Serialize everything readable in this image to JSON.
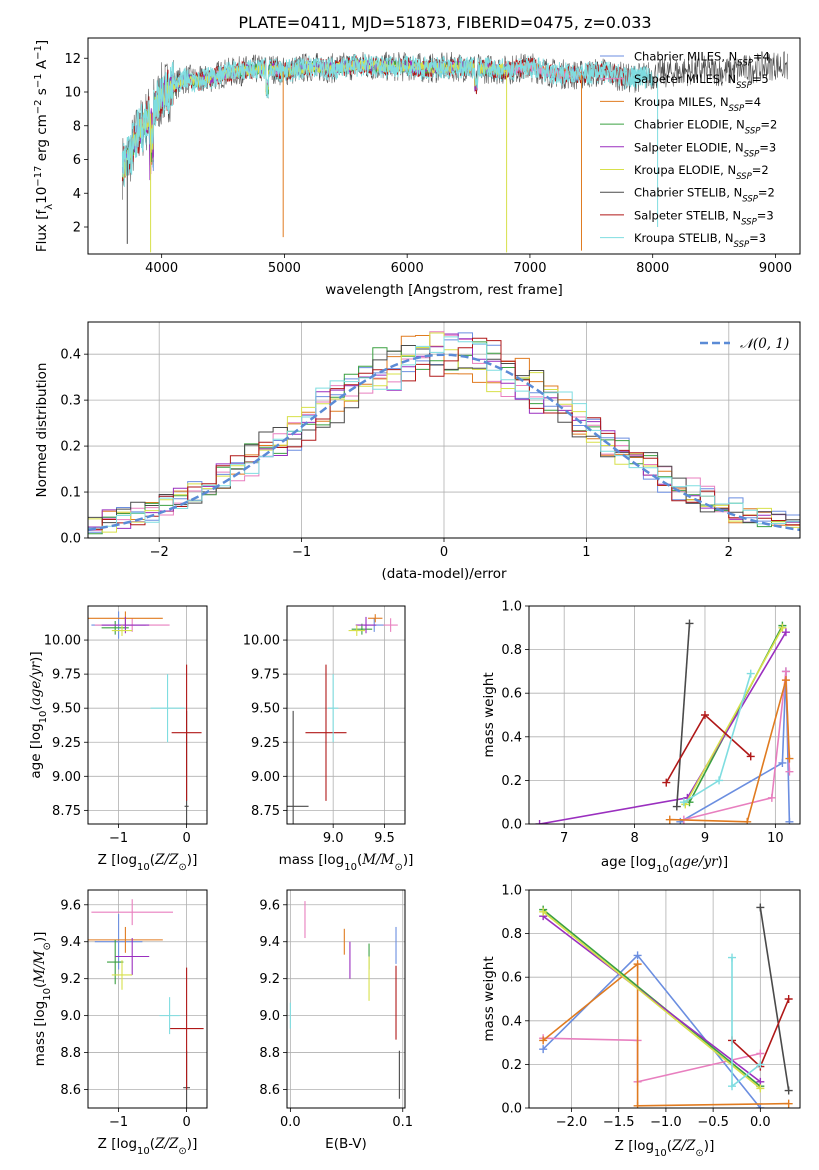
{
  "figure": {
    "title": "PLATE=0411, MJD=51873, FIBERID=0475, z=0.033"
  },
  "colors": {
    "Chabrier MILES": "#6b8ee0",
    "Salpeter MILES": "#e87fbf",
    "Kroupa MILES": "#e07b20",
    "Chabrier ELODIE": "#3aa040",
    "Salpeter ELODIE": "#9a2fbf",
    "Kroupa ELODIE": "#d7e04a",
    "Chabrier STELIB": "#4a4a4a",
    "Salpeter STELIB": "#b01818",
    "Kroupa STELIB": "#7fdde0"
  },
  "chart_data": [
    {
      "id": "spectrum",
      "type": "line",
      "xlabel": "wavelength [Angstrom, rest frame]",
      "ylabel": "Flux [f_λ 10^-17 erg cm^-2 s^-1 A^-1]",
      "xlim": [
        3400,
        9200
      ],
      "ylim": [
        0.4,
        13.2
      ],
      "xticks": [
        4000,
        5000,
        6000,
        7000,
        8000,
        9000
      ],
      "yticks": [
        2,
        4,
        6,
        8,
        10,
        12
      ],
      "grid": false,
      "legend_position": "top-right",
      "legend": [
        {
          "name": "Chabrier MILES",
          "label": "Chabrier MILES, N_SSP=4"
        },
        {
          "name": "Salpeter MILES",
          "label": "Salpeter MILES, N_SSP=5"
        },
        {
          "name": "Kroupa MILES",
          "label": "Kroupa MILES, N_SSP=4"
        },
        {
          "name": "Chabrier ELODIE",
          "label": "Chabrier ELODIE, N_SSP=2"
        },
        {
          "name": "Salpeter ELODIE",
          "label": "Salpeter ELODIE, N_SSP=3"
        },
        {
          "name": "Kroupa ELODIE",
          "label": "Kroupa ELODIE, N_SSP=2"
        },
        {
          "name": "Chabrier STELIB",
          "label": "Chabrier STELIB, N_SSP=2"
        },
        {
          "name": "Salpeter STELIB",
          "label": "Salpeter STELIB, N_SSP=3"
        },
        {
          "name": "Kroupa STELIB",
          "label": "Kroupa STELIB, N_SSP=3"
        }
      ],
      "data_series": {
        "x": [
          3700,
          3800,
          3900,
          4000,
          4100,
          4200,
          4300,
          4500,
          4700,
          4900,
          5000,
          5200,
          5400,
          5600,
          5800,
          6000,
          6200,
          6400,
          6600,
          6800,
          7000,
          7200,
          7400,
          7600,
          7800,
          8000,
          8200,
          8400,
          8600,
          8800,
          9000,
          9100
        ],
        "y": [
          5.6,
          7.4,
          8.6,
          9.8,
          10.4,
          10.8,
          10.6,
          11.1,
          11.3,
          11.4,
          11.2,
          11.5,
          11.4,
          11.6,
          11.5,
          11.5,
          11.4,
          11.5,
          11.4,
          11.3,
          11.5,
          11.1,
          11.0,
          11.2,
          10.8,
          11.0,
          11.2,
          11.3,
          11.2,
          11.4,
          11.6,
          11.5
        ]
      }
    },
    {
      "id": "residuals",
      "type": "line",
      "xlabel": "(data-model)/error",
      "ylabel": "Normed distribution",
      "xlim": [
        -2.5,
        2.5
      ],
      "ylim": [
        0,
        0.47
      ],
      "xticks": [
        -2,
        -1,
        0,
        1,
        2
      ],
      "yticks": [
        0.0,
        0.1,
        0.2,
        0.3,
        0.4
      ],
      "grid": true,
      "legend_position": "top-right",
      "legend": [
        {
          "label": "N(0,1)"
        }
      ],
      "reference": "normal(0,1)"
    },
    {
      "id": "age-vs-Z",
      "type": "scatter",
      "xlabel": "Z [log10(Z/Z☉)]",
      "ylabel": "age  [log10(age/yr)]",
      "xlim": [
        -1.45,
        0.3
      ],
      "ylim": [
        8.65,
        10.25
      ],
      "xticks": [
        -1,
        0
      ],
      "yticks": [
        8.75,
        9.0,
        9.25,
        9.5,
        9.75,
        10.0
      ],
      "grid": true,
      "points": [
        {
          "name": "Chabrier MILES",
          "x": -1.0,
          "y": 10.11,
          "xerr": 0.4,
          "yerr": 0.1
        },
        {
          "name": "Salpeter MILES",
          "x": -0.8,
          "y": 10.11,
          "xerr": 0.55,
          "yerr": 0.05
        },
        {
          "name": "Kroupa MILES",
          "x": -0.9,
          "y": 10.16,
          "xerr": 0.55,
          "yerr": 0.05
        },
        {
          "name": "Chabrier ELODIE",
          "x": -1.05,
          "y": 10.09,
          "xerr": 0.2,
          "yerr": 0.05
        },
        {
          "name": "Salpeter ELODIE",
          "x": -0.9,
          "y": 10.11,
          "xerr": 0.35,
          "yerr": 0.06
        },
        {
          "name": "Kroupa ELODIE",
          "x": -0.95,
          "y": 10.07,
          "xerr": 0.15,
          "yerr": 0.04
        },
        {
          "name": "Chabrier STELIB",
          "x": 0.0,
          "y": 8.78,
          "xerr": 0.03,
          "yerr": 0.7
        },
        {
          "name": "Salpeter STELIB",
          "x": 0.0,
          "y": 9.32,
          "xerr": 0.22,
          "yerr": 0.5
        },
        {
          "name": "Kroupa STELIB",
          "x": -0.28,
          "y": 9.5,
          "xerr": 0.25,
          "yerr": 0.25
        }
      ]
    },
    {
      "id": "age-vs-mass",
      "type": "scatter",
      "xlabel": "mass [log10(M/M☉)]",
      "ylabel": "",
      "xlim": [
        8.55,
        9.7
      ],
      "ylim": [
        8.65,
        10.25
      ],
      "xticks": [
        9.0,
        9.5
      ],
      "yticks": [
        8.75,
        9.0,
        9.25,
        9.5,
        9.75,
        10.0
      ],
      "grid": true,
      "points": [
        {
          "name": "Chabrier MILES",
          "x": 9.4,
          "y": 10.11,
          "xerr": 0.1,
          "yerr": 0.05
        },
        {
          "name": "Salpeter MILES",
          "x": 9.56,
          "y": 10.11,
          "xerr": 0.07,
          "yerr": 0.05
        },
        {
          "name": "Kroupa MILES",
          "x": 9.41,
          "y": 10.16,
          "xerr": 0.07,
          "yerr": 0.03
        },
        {
          "name": "Chabrier ELODIE",
          "x": 9.28,
          "y": 10.08,
          "xerr": 0.1,
          "yerr": 0.04
        },
        {
          "name": "Salpeter ELODIE",
          "x": 9.32,
          "y": 10.11,
          "xerr": 0.1,
          "yerr": 0.06
        },
        {
          "name": "Kroupa ELODIE",
          "x": 9.23,
          "y": 10.07,
          "xerr": 0.08,
          "yerr": 0.04
        },
        {
          "name": "Chabrier STELIB",
          "x": 8.61,
          "y": 8.78,
          "xerr": 0.15,
          "yerr": 0.7
        },
        {
          "name": "Salpeter STELIB",
          "x": 8.93,
          "y": 9.32,
          "xerr": 0.2,
          "yerr": 0.5
        },
        {
          "name": "Kroupa STELIB",
          "x": 9.0,
          "y": 9.5,
          "xerr": 0.05,
          "yerr": 0.25
        }
      ]
    },
    {
      "id": "weight-vs-age",
      "type": "line",
      "xlabel": "age  [log10(age/yr)]",
      "ylabel": "mass weight",
      "xlim": [
        6.5,
        10.35
      ],
      "ylim": [
        0,
        1.0
      ],
      "xticks": [
        7,
        8,
        9,
        10
      ],
      "yticks": [
        0.0,
        0.2,
        0.4,
        0.6,
        0.8,
        1.0
      ],
      "grid": true,
      "series": [
        {
          "name": "Chabrier MILES",
          "points": [
            [
              8.65,
              0.01
            ],
            [
              10.1,
              0.28
            ],
            [
              10.15,
              0.7
            ],
            [
              10.2,
              0.01
            ]
          ]
        },
        {
          "name": "Salpeter MILES",
          "points": [
            [
              8.7,
              0.02
            ],
            [
              9.95,
              0.12
            ],
            [
              10.15,
              0.7
            ],
            [
              10.2,
              0.24
            ]
          ]
        },
        {
          "name": "Kroupa MILES",
          "points": [
            [
              8.5,
              0.02
            ],
            [
              9.6,
              0.01
            ],
            [
              10.15,
              0.66
            ],
            [
              10.2,
              0.3
            ]
          ]
        },
        {
          "name": "Chabrier ELODIE",
          "points": [
            [
              8.78,
              0.1
            ],
            [
              10.1,
              0.91
            ]
          ]
        },
        {
          "name": "Salpeter ELODIE",
          "points": [
            [
              6.65,
              0.0
            ],
            [
              8.75,
              0.12
            ],
            [
              10.15,
              0.88
            ]
          ]
        },
        {
          "name": "Kroupa ELODIE",
          "points": [
            [
              8.72,
              0.09
            ],
            [
              10.1,
              0.9
            ]
          ]
        },
        {
          "name": "Chabrier STELIB",
          "points": [
            [
              8.6,
              0.08
            ],
            [
              8.78,
              0.92
            ]
          ]
        },
        {
          "name": "Salpeter STELIB",
          "points": [
            [
              8.45,
              0.19
            ],
            [
              9.0,
              0.5
            ],
            [
              9.65,
              0.31
            ]
          ]
        },
        {
          "name": "Kroupa STELIB",
          "points": [
            [
              8.7,
              0.1
            ],
            [
              9.2,
              0.2
            ],
            [
              9.65,
              0.69
            ]
          ]
        }
      ]
    },
    {
      "id": "mass-vs-Z",
      "type": "scatter",
      "xlabel": "Z [log10(Z/Z☉)]",
      "ylabel": "mass [log10(M/M☉)]",
      "xlim": [
        -1.45,
        0.3
      ],
      "ylim": [
        8.5,
        9.68
      ],
      "xticks": [
        -1,
        0
      ],
      "yticks": [
        8.6,
        8.8,
        9.0,
        9.2,
        9.4,
        9.6
      ],
      "grid": true,
      "points": [
        {
          "name": "Chabrier MILES",
          "x": -1.0,
          "y": 9.4,
          "xerr": 0.35,
          "yerr": 0.15
        },
        {
          "name": "Salpeter MILES",
          "x": -0.8,
          "y": 9.56,
          "xerr": 0.6,
          "yerr": 0.07
        },
        {
          "name": "Kroupa MILES",
          "x": -0.9,
          "y": 9.41,
          "xerr": 0.55,
          "yerr": 0.07
        },
        {
          "name": "Chabrier ELODIE",
          "x": -1.05,
          "y": 9.29,
          "xerr": 0.12,
          "yerr": 0.12
        },
        {
          "name": "Salpeter ELODIE",
          "x": -0.8,
          "y": 9.32,
          "xerr": 0.25,
          "yerr": 0.1
        },
        {
          "name": "Kroupa ELODIE",
          "x": -0.95,
          "y": 9.22,
          "xerr": 0.15,
          "yerr": 0.08
        },
        {
          "name": "Chabrier STELIB",
          "x": 0.0,
          "y": 8.61,
          "xerr": 0.05,
          "yerr": 0.2
        },
        {
          "name": "Salpeter STELIB",
          "x": 0.0,
          "y": 8.93,
          "xerr": 0.25,
          "yerr": 0.33
        },
        {
          "name": "Kroupa STELIB",
          "x": -0.25,
          "y": 9.0,
          "xerr": 0.15,
          "yerr": 0.1
        }
      ]
    },
    {
      "id": "mass-vs-EBV",
      "type": "scatter",
      "xlabel": "E(B-V)",
      "ylabel": "",
      "xlim": [
        -0.003,
        0.102
      ],
      "ylim": [
        8.5,
        9.68
      ],
      "xticks": [
        0.0,
        0.1
      ],
      "yticks": [
        8.6,
        8.8,
        9.0,
        9.2,
        9.4,
        9.6
      ],
      "grid": true,
      "points": [
        {
          "name": "Chabrier MILES",
          "x": 0.094,
          "y": 9.38,
          "xerr": 0,
          "yerr": 0.1
        },
        {
          "name": "Salpeter MILES",
          "x": 0.013,
          "y": 9.52,
          "xerr": 0,
          "yerr": 0.1
        },
        {
          "name": "Kroupa MILES",
          "x": 0.048,
          "y": 9.4,
          "xerr": 0,
          "yerr": 0.07
        },
        {
          "name": "Chabrier ELODIE",
          "x": 0.07,
          "y": 9.32,
          "xerr": 0,
          "yerr": 0.07
        },
        {
          "name": "Salpeter ELODIE",
          "x": 0.053,
          "y": 9.3,
          "xerr": 0,
          "yerr": 0.1
        },
        {
          "name": "Kroupa ELODIE",
          "x": 0.07,
          "y": 9.2,
          "xerr": 0,
          "yerr": 0.12
        },
        {
          "name": "Chabrier STELIB",
          "x": 0.097,
          "y": 8.68,
          "xerr": 0,
          "yerr": 0.13
        },
        {
          "name": "Salpeter STELIB",
          "x": 0.094,
          "y": 9.07,
          "xerr": 0,
          "yerr": 0.2
        },
        {
          "name": "Kroupa STELIB",
          "x": 0.0,
          "y": 9.0,
          "xerr": 0,
          "yerr": 0.07
        }
      ]
    },
    {
      "id": "weight-vs-Z",
      "type": "line",
      "xlabel": "Z [log10(Z/Z☉)]",
      "ylabel": "mass weight",
      "xlim": [
        -2.45,
        0.42
      ],
      "ylim": [
        0,
        1.0
      ],
      "xticks": [
        -2.0,
        -1.5,
        -1.0,
        -0.5,
        0.0
      ],
      "yticks": [
        0.0,
        0.2,
        0.4,
        0.6,
        0.8,
        1.0
      ],
      "grid": true,
      "series": [
        {
          "name": "Chabrier MILES",
          "points": [
            [
              -2.3,
              0.27
            ],
            [
              -1.3,
              0.7
            ],
            [
              0.0,
              0.0
            ]
          ]
        },
        {
          "name": "Salpeter MILES",
          "points": [
            [
              -2.3,
              0.32
            ],
            [
              -1.3,
              0.31
            ],
            [
              -1.3,
              0.12
            ],
            [
              0.0,
              0.25
            ]
          ]
        },
        {
          "name": "Kroupa MILES",
          "points": [
            [
              -2.3,
              0.31
            ],
            [
              -1.3,
              0.66
            ],
            [
              -1.3,
              0.01
            ],
            [
              0.3,
              0.02
            ]
          ]
        },
        {
          "name": "Chabrier ELODIE",
          "points": [
            [
              -2.3,
              0.91
            ],
            [
              0.0,
              0.1
            ]
          ]
        },
        {
          "name": "Salpeter ELODIE",
          "points": [
            [
              -2.3,
              0.88
            ],
            [
              0.0,
              0.12
            ]
          ]
        },
        {
          "name": "Kroupa ELODIE",
          "points": [
            [
              -2.3,
              0.9
            ],
            [
              0.0,
              0.09
            ]
          ]
        },
        {
          "name": "Chabrier STELIB",
          "points": [
            [
              0.0,
              0.92
            ],
            [
              0.3,
              0.08
            ]
          ]
        },
        {
          "name": "Salpeter STELIB",
          "points": [
            [
              -0.3,
              0.31
            ],
            [
              0.0,
              0.19
            ],
            [
              0.3,
              0.5
            ]
          ]
        },
        {
          "name": "Kroupa STELIB",
          "points": [
            [
              -0.3,
              0.69
            ],
            [
              -0.3,
              0.1
            ],
            [
              0.0,
              0.2
            ]
          ]
        }
      ]
    }
  ]
}
